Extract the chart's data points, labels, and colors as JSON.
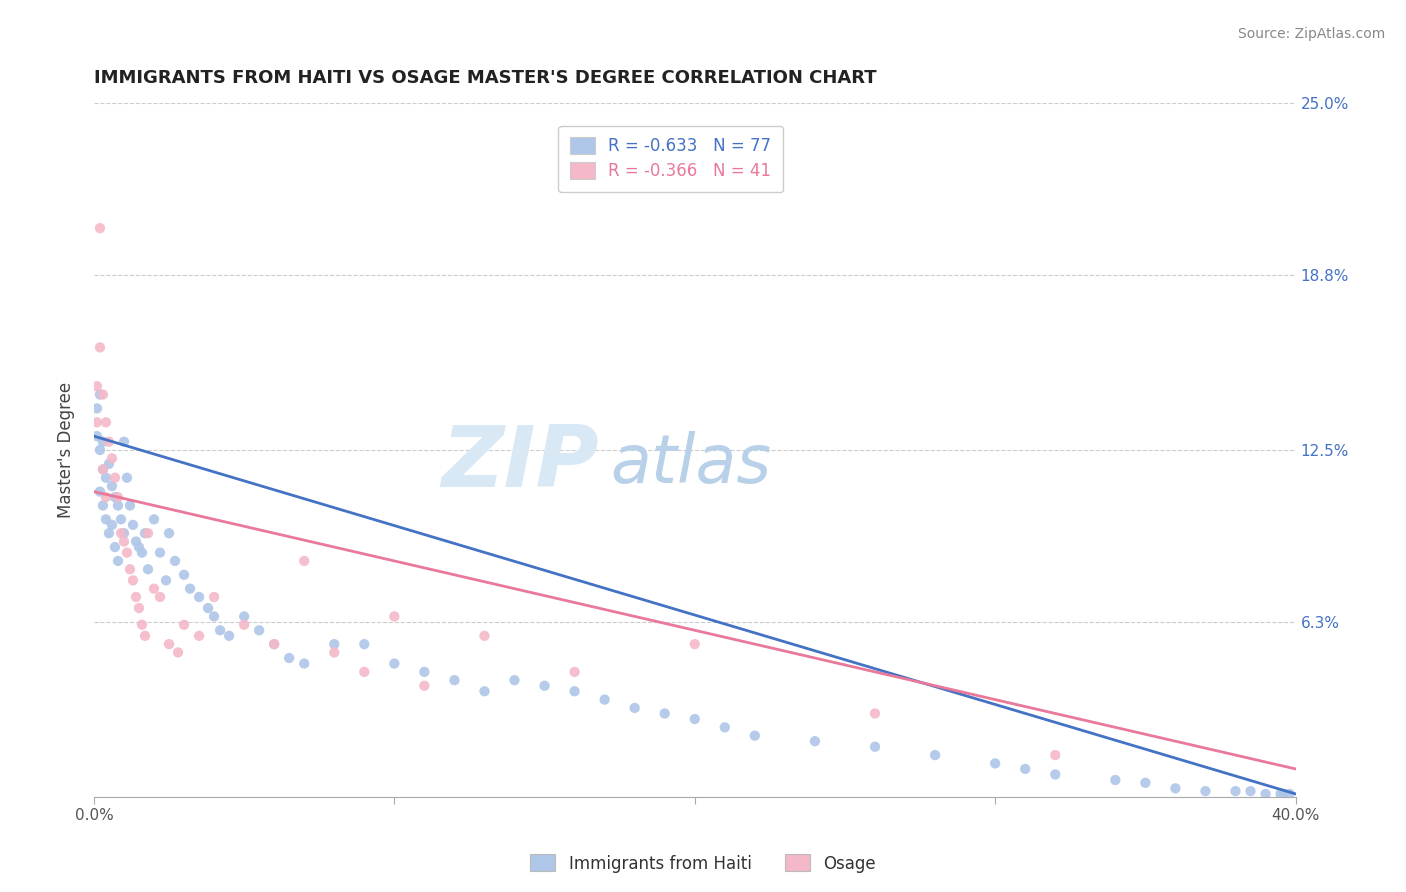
{
  "title": "IMMIGRANTS FROM HAITI VS OSAGE MASTER'S DEGREE CORRELATION CHART",
  "source_text": "Source: ZipAtlas.com",
  "watermark_zip": "ZIP",
  "watermark_atlas": "atlas",
  "ylabel": "Master's Degree",
  "xlim": [
    0.0,
    0.4
  ],
  "ylim": [
    0.0,
    0.25
  ],
  "xtick_labels": [
    "0.0%",
    "",
    "",
    "",
    "40.0%"
  ],
  "xtick_values": [
    0.0,
    0.1,
    0.2,
    0.3,
    0.4
  ],
  "ytick_labels": [
    "",
    "6.3%",
    "12.5%",
    "18.8%",
    "25.0%"
  ],
  "ytick_values": [
    0.0,
    0.063,
    0.125,
    0.188,
    0.25
  ],
  "haiti_color": "#aec6e8",
  "osage_color": "#f4b8c8",
  "haiti_line_color": "#4472c4",
  "osage_line_color": "#e8799a",
  "haiti_R": -0.633,
  "haiti_N": 77,
  "osage_R": -0.366,
  "osage_N": 41,
  "haiti_scatter_x": [
    0.001,
    0.001,
    0.002,
    0.002,
    0.002,
    0.003,
    0.003,
    0.003,
    0.004,
    0.004,
    0.005,
    0.005,
    0.006,
    0.006,
    0.007,
    0.007,
    0.008,
    0.008,
    0.009,
    0.01,
    0.01,
    0.011,
    0.012,
    0.013,
    0.014,
    0.015,
    0.016,
    0.017,
    0.018,
    0.02,
    0.022,
    0.024,
    0.025,
    0.027,
    0.03,
    0.032,
    0.035,
    0.038,
    0.04,
    0.042,
    0.045,
    0.05,
    0.055,
    0.06,
    0.065,
    0.07,
    0.08,
    0.09,
    0.1,
    0.11,
    0.12,
    0.13,
    0.14,
    0.15,
    0.16,
    0.17,
    0.18,
    0.19,
    0.2,
    0.21,
    0.22,
    0.24,
    0.26,
    0.28,
    0.3,
    0.31,
    0.32,
    0.34,
    0.35,
    0.36,
    0.37,
    0.38,
    0.385,
    0.39,
    0.395,
    0.396,
    0.398
  ],
  "haiti_scatter_y": [
    0.14,
    0.13,
    0.145,
    0.125,
    0.11,
    0.128,
    0.118,
    0.105,
    0.115,
    0.1,
    0.12,
    0.095,
    0.112,
    0.098,
    0.108,
    0.09,
    0.105,
    0.085,
    0.1,
    0.128,
    0.095,
    0.115,
    0.105,
    0.098,
    0.092,
    0.09,
    0.088,
    0.095,
    0.082,
    0.1,
    0.088,
    0.078,
    0.095,
    0.085,
    0.08,
    0.075,
    0.072,
    0.068,
    0.065,
    0.06,
    0.058,
    0.065,
    0.06,
    0.055,
    0.05,
    0.048,
    0.055,
    0.055,
    0.048,
    0.045,
    0.042,
    0.038,
    0.042,
    0.04,
    0.038,
    0.035,
    0.032,
    0.03,
    0.028,
    0.025,
    0.022,
    0.02,
    0.018,
    0.015,
    0.012,
    0.01,
    0.008,
    0.006,
    0.005,
    0.003,
    0.002,
    0.002,
    0.002,
    0.001,
    0.001,
    0.001,
    0.001
  ],
  "osage_scatter_x": [
    0.001,
    0.001,
    0.002,
    0.002,
    0.003,
    0.003,
    0.004,
    0.004,
    0.005,
    0.006,
    0.007,
    0.008,
    0.009,
    0.01,
    0.011,
    0.012,
    0.013,
    0.014,
    0.015,
    0.016,
    0.017,
    0.018,
    0.02,
    0.022,
    0.025,
    0.028,
    0.03,
    0.035,
    0.04,
    0.05,
    0.06,
    0.07,
    0.08,
    0.09,
    0.1,
    0.11,
    0.13,
    0.16,
    0.2,
    0.26,
    0.32
  ],
  "osage_scatter_y": [
    0.148,
    0.135,
    0.205,
    0.162,
    0.145,
    0.118,
    0.135,
    0.108,
    0.128,
    0.122,
    0.115,
    0.108,
    0.095,
    0.092,
    0.088,
    0.082,
    0.078,
    0.072,
    0.068,
    0.062,
    0.058,
    0.095,
    0.075,
    0.072,
    0.055,
    0.052,
    0.062,
    0.058,
    0.072,
    0.062,
    0.055,
    0.085,
    0.052,
    0.045,
    0.065,
    0.04,
    0.058,
    0.045,
    0.055,
    0.03,
    0.015
  ]
}
